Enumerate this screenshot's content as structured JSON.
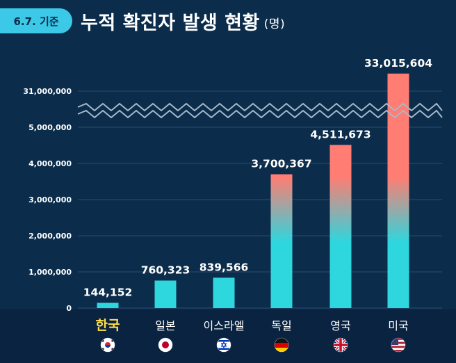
{
  "header": {
    "badge": "6.7. 기준",
    "title": "누적 확진자 발생 현황",
    "unit": "(명)"
  },
  "colors": {
    "background": "#0b2c4b",
    "accent": "#3cc9e8",
    "bar_low": "#2ed6de",
    "bar_high": "#ff7d72",
    "highlight": "#ffe14a"
  },
  "chart_data": {
    "type": "bar",
    "categories": [
      "한국",
      "일본",
      "이스라엘",
      "독일",
      "영국",
      "미국"
    ],
    "values": [
      144152,
      760323,
      839566,
      3700367,
      4511673,
      33015604
    ],
    "value_labels": [
      "144,152",
      "760,323",
      "839,566",
      "3,700,367",
      "4,511,673",
      "33,015,604"
    ],
    "highlight_category": "한국",
    "flags": [
      "korea-flag-icon",
      "japan-flag-icon",
      "israel-flag-icon",
      "germany-flag-icon",
      "uk-flag-icon",
      "usa-flag-icon"
    ],
    "y_ticks": [
      {
        "value": 0,
        "label": "0"
      },
      {
        "value": 1000000,
        "label": "1,000,000"
      },
      {
        "value": 2000000,
        "label": "2,000,000"
      },
      {
        "value": 3000000,
        "label": "3,000,000"
      },
      {
        "value": 4000000,
        "label": "4,000,000"
      },
      {
        "value": 5000000,
        "label": "5,000,000"
      },
      {
        "value": 31000000,
        "label": "31,000,000"
      }
    ],
    "axis_break": [
      5000000,
      31000000
    ],
    "ylim": [
      0,
      33015604
    ],
    "grid": true,
    "legend": "none"
  }
}
